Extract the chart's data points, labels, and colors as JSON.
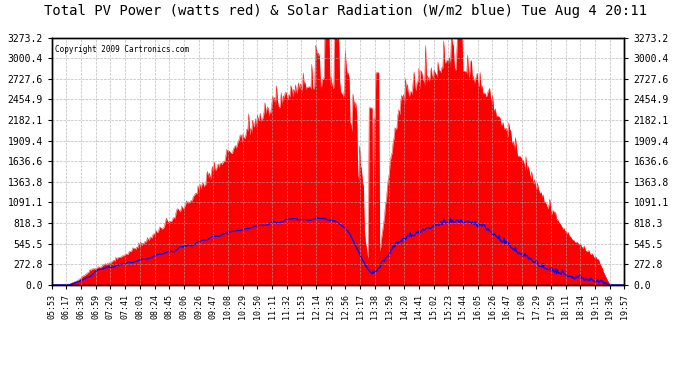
{
  "title": "Total PV Power (watts red) & Solar Radiation (W/m2 blue) Tue Aug 4 20:11",
  "copyright": "Copyright 2009 Cartronics.com",
  "bg_color": "#ffffff",
  "plot_bg_color": "#ffffff",
  "grid_color": "#aaaaaa",
  "yticks": [
    0.0,
    272.8,
    545.5,
    818.3,
    1091.1,
    1363.8,
    1636.6,
    1909.4,
    2182.1,
    2454.9,
    2727.6,
    3000.4,
    3273.2
  ],
  "xtick_labels": [
    "05:53",
    "06:17",
    "06:38",
    "06:59",
    "07:20",
    "07:41",
    "08:03",
    "08:24",
    "08:45",
    "09:06",
    "09:26",
    "09:47",
    "10:08",
    "10:29",
    "10:50",
    "11:11",
    "11:32",
    "11:53",
    "12:14",
    "12:35",
    "12:56",
    "13:17",
    "13:38",
    "13:59",
    "14:20",
    "14:41",
    "15:02",
    "15:23",
    "15:44",
    "16:05",
    "16:26",
    "16:47",
    "17:08",
    "17:29",
    "17:50",
    "18:11",
    "18:34",
    "19:15",
    "19:36",
    "19:57"
  ],
  "red_color": "#ff0000",
  "blue_color": "#0000ff",
  "ymax": 3273.2,
  "ymin": 0.0,
  "title_fontsize": 10,
  "label_fontsize": 7,
  "xtick_fontsize": 6
}
